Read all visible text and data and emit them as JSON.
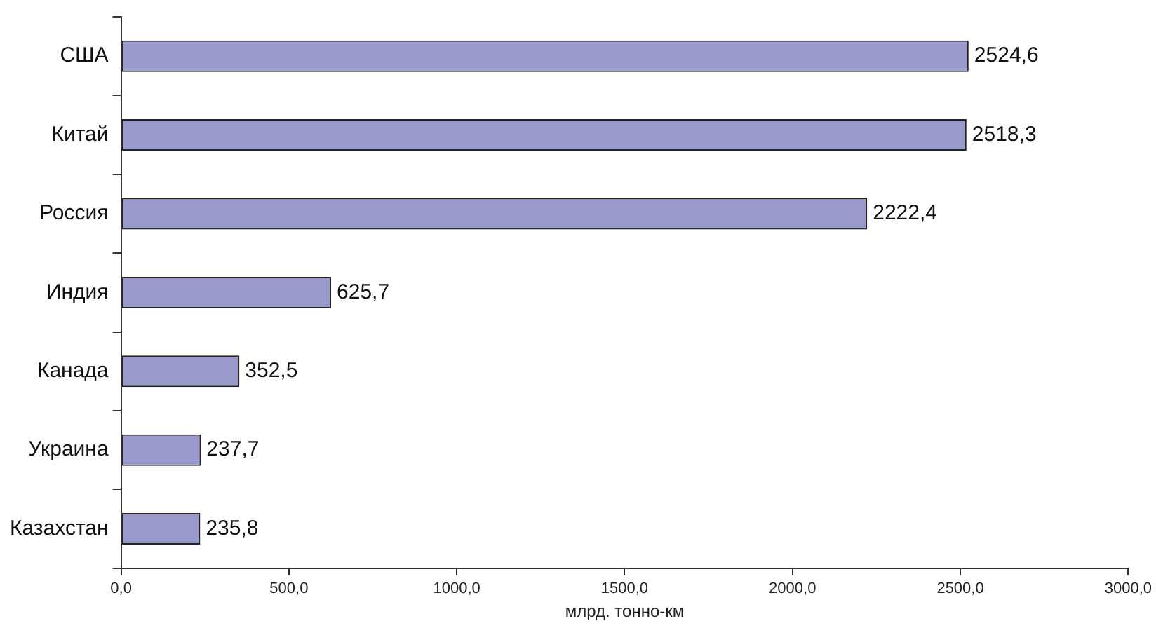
{
  "chart_data": {
    "type": "bar",
    "orientation": "horizontal",
    "xlabel": "млрд. тонно-км",
    "categories": [
      "США",
      "Китай",
      "Россия",
      "Индия",
      "Канада",
      "Украина",
      "Казахстан"
    ],
    "values": [
      2524.6,
      2518.3,
      2222.4,
      625.7,
      352.5,
      237.7,
      235.8
    ],
    "value_labels": [
      "2524,6",
      "2518,3",
      "2222,4",
      "625,7",
      "352,5",
      "237,7",
      "235,8"
    ],
    "color": "#9999cc",
    "xlim": [
      0,
      3000
    ],
    "xticks": [
      {
        "value": 0,
        "label": "0,0"
      },
      {
        "value": 500,
        "label": "500,0"
      },
      {
        "value": 1000,
        "label": "1000,0"
      },
      {
        "value": 1500,
        "label": "1500,0"
      },
      {
        "value": 2000,
        "label": "2000,0"
      },
      {
        "value": 2500,
        "label": "2500,0"
      },
      {
        "value": 3000,
        "label": "3000,0"
      }
    ],
    "grid": false,
    "legend": false
  }
}
